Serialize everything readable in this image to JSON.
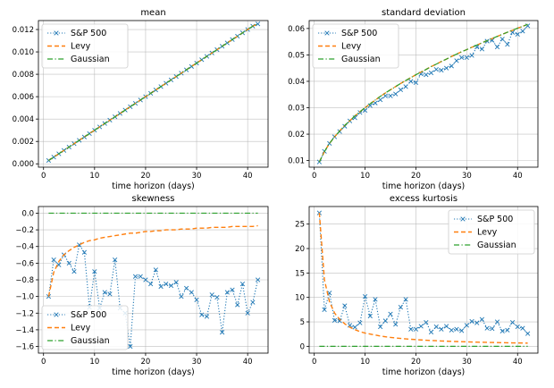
{
  "colors": {
    "sp500": "#1f77b4",
    "levy": "#ff7f0e",
    "gaussian": "#2ca02c"
  },
  "chart_data": [
    {
      "type": "line",
      "title": "mean",
      "xlabel": "time horizon (days)",
      "ylabel": "",
      "xlim": [
        -1,
        44
      ],
      "ylim": [
        -0.0003,
        0.0128
      ],
      "xticks": [
        0,
        10,
        20,
        30,
        40
      ],
      "yticks": [
        0.0,
        0.002,
        0.004,
        0.006,
        0.008,
        0.01,
        0.012
      ],
      "ytick_labels": [
        "0.000",
        "0.002",
        "0.004",
        "0.006",
        "0.008",
        "0.010",
        "0.012"
      ],
      "grid": true,
      "legend": "upper-left",
      "x": [
        1,
        2,
        3,
        4,
        5,
        6,
        7,
        8,
        9,
        10,
        11,
        12,
        13,
        14,
        15,
        16,
        17,
        18,
        19,
        20,
        21,
        22,
        23,
        24,
        25,
        26,
        27,
        28,
        29,
        30,
        31,
        32,
        33,
        34,
        35,
        36,
        37,
        38,
        39,
        40,
        41,
        42
      ],
      "series": [
        {
          "name": "S&P 500",
          "style": "dotted-x",
          "values": [
            0.0003,
            0.0006,
            0.0009,
            0.0012,
            0.0015,
            0.0018,
            0.0021,
            0.0024,
            0.0027,
            0.003,
            0.0033,
            0.0036,
            0.0039,
            0.0042,
            0.0045,
            0.0048,
            0.0051,
            0.0054,
            0.0057,
            0.006,
            0.0063,
            0.0066,
            0.0069,
            0.0072,
            0.0075,
            0.0078,
            0.0081,
            0.0084,
            0.0087,
            0.009,
            0.0093,
            0.0096,
            0.0099,
            0.0102,
            0.0105,
            0.0108,
            0.0111,
            0.0114,
            0.0117,
            0.012,
            0.0123,
            0.0125
          ]
        },
        {
          "name": "Levy",
          "style": "dashed",
          "values": [
            0.0003,
            0.0006,
            0.0009,
            0.0012,
            0.0015,
            0.0018,
            0.0021,
            0.0024,
            0.0027,
            0.003,
            0.0033,
            0.0036,
            0.0039,
            0.0042,
            0.0045,
            0.0048,
            0.0051,
            0.0054,
            0.0057,
            0.006,
            0.0063,
            0.0066,
            0.0069,
            0.0072,
            0.0075,
            0.0078,
            0.0081,
            0.0084,
            0.0087,
            0.009,
            0.0093,
            0.0096,
            0.0099,
            0.0102,
            0.0105,
            0.0108,
            0.0111,
            0.0114,
            0.0117,
            0.012,
            0.0123,
            0.0125
          ]
        },
        {
          "name": "Gaussian",
          "style": "dashdot",
          "values": [
            0.0003,
            0.0006,
            0.0009,
            0.0012,
            0.0015,
            0.0018,
            0.0021,
            0.0024,
            0.0027,
            0.003,
            0.0033,
            0.0036,
            0.0039,
            0.0042,
            0.0045,
            0.0048,
            0.0051,
            0.0054,
            0.0057,
            0.006,
            0.0063,
            0.0066,
            0.0069,
            0.0072,
            0.0075,
            0.0078,
            0.0081,
            0.0084,
            0.0087,
            0.009,
            0.0093,
            0.0096,
            0.0099,
            0.0102,
            0.0105,
            0.0108,
            0.0111,
            0.0114,
            0.0117,
            0.012,
            0.0123,
            0.0125
          ]
        }
      ]
    },
    {
      "type": "line",
      "title": "standard deviation",
      "xlabel": "time horizon (days)",
      "ylabel": "",
      "xlim": [
        -1,
        44
      ],
      "ylim": [
        0.0075,
        0.063
      ],
      "xticks": [
        0,
        10,
        20,
        30,
        40
      ],
      "yticks": [
        0.01,
        0.02,
        0.03,
        0.04,
        0.05,
        0.06
      ],
      "ytick_labels": [
        "0.01",
        "0.02",
        "0.03",
        "0.04",
        "0.05",
        "0.06"
      ],
      "grid": true,
      "legend": "upper-left",
      "x": [
        1,
        2,
        3,
        4,
        5,
        6,
        7,
        8,
        9,
        10,
        11,
        12,
        13,
        14,
        15,
        16,
        17,
        18,
        19,
        20,
        21,
        22,
        23,
        24,
        25,
        26,
        27,
        28,
        29,
        30,
        31,
        32,
        33,
        34,
        35,
        36,
        37,
        38,
        39,
        40,
        41,
        42
      ],
      "series": [
        {
          "name": "S&P 500",
          "style": "dotted-x",
          "values": [
            0.0095,
            0.0135,
            0.0165,
            0.019,
            0.021,
            0.023,
            0.025,
            0.0262,
            0.0282,
            0.029,
            0.0308,
            0.0318,
            0.033,
            0.0345,
            0.0345,
            0.0352,
            0.0368,
            0.038,
            0.04,
            0.0395,
            0.0428,
            0.0425,
            0.0432,
            0.0445,
            0.0442,
            0.045,
            0.0458,
            0.0478,
            0.049,
            0.049,
            0.0498,
            0.053,
            0.0522,
            0.0552,
            0.0555,
            0.053,
            0.056,
            0.054,
            0.0585,
            0.0578,
            0.059,
            0.061
          ]
        },
        {
          "name": "Levy",
          "style": "dashed",
          "values": [
            0.0095,
            0.0134,
            0.0165,
            0.019,
            0.0212,
            0.0233,
            0.0251,
            0.0269,
            0.0285,
            0.03,
            0.0315,
            0.0329,
            0.0343,
            0.0356,
            0.0368,
            0.038,
            0.0392,
            0.0403,
            0.0414,
            0.0425,
            0.0435,
            0.0445,
            0.0456,
            0.0465,
            0.0475,
            0.0484,
            0.0494,
            0.0503,
            0.0512,
            0.052,
            0.0529,
            0.0537,
            0.0546,
            0.0554,
            0.0562,
            0.057,
            0.0578,
            0.0586,
            0.0593,
            0.0601,
            0.0608,
            0.0616
          ]
        },
        {
          "name": "Gaussian",
          "style": "dashdot",
          "values": [
            0.0095,
            0.0134,
            0.0165,
            0.019,
            0.0212,
            0.0233,
            0.0251,
            0.0269,
            0.0285,
            0.03,
            0.0315,
            0.0329,
            0.0343,
            0.0356,
            0.0368,
            0.038,
            0.0392,
            0.0403,
            0.0414,
            0.0425,
            0.0435,
            0.0445,
            0.0456,
            0.0465,
            0.0475,
            0.0484,
            0.0494,
            0.0503,
            0.0512,
            0.052,
            0.0529,
            0.0537,
            0.0546,
            0.0554,
            0.0562,
            0.057,
            0.0578,
            0.0586,
            0.0593,
            0.0601,
            0.0608,
            0.0616
          ]
        }
      ]
    },
    {
      "type": "line",
      "title": "skewness",
      "xlabel": "time horizon (days)",
      "ylabel": "",
      "xlim": [
        -1,
        44
      ],
      "ylim": [
        -1.68,
        0.08
      ],
      "xticks": [
        0,
        10,
        20,
        30,
        40
      ],
      "yticks": [
        0.0,
        -0.2,
        -0.4,
        -0.6,
        -0.8,
        -1.0,
        -1.2,
        -1.4,
        -1.6
      ],
      "ytick_labels": [
        "0.0",
        "−0.2",
        "−0.4",
        "−0.6",
        "−0.8",
        "−1.0",
        "−1.2",
        "−1.4",
        "−1.6"
      ],
      "grid": true,
      "legend": "lower-left",
      "x": [
        1,
        2,
        3,
        4,
        5,
        6,
        7,
        8,
        9,
        10,
        11,
        12,
        13,
        14,
        15,
        16,
        17,
        18,
        19,
        20,
        21,
        22,
        23,
        24,
        25,
        26,
        27,
        28,
        29,
        30,
        31,
        32,
        33,
        34,
        35,
        36,
        37,
        38,
        39,
        40,
        41,
        42
      ],
      "series": [
        {
          "name": "S&P 500",
          "style": "dotted-x",
          "values": [
            -1.0,
            -0.56,
            -0.62,
            -0.5,
            -0.6,
            -0.7,
            -0.38,
            -0.47,
            -1.13,
            -0.7,
            -1.14,
            -0.95,
            -0.97,
            -0.56,
            -1.14,
            -1.2,
            -1.6,
            -0.76,
            -0.76,
            -0.8,
            -0.85,
            -0.68,
            -0.88,
            -0.85,
            -0.87,
            -0.83,
            -1.0,
            -0.9,
            -0.95,
            -1.04,
            -1.22,
            -1.24,
            -0.98,
            -1.01,
            -1.43,
            -0.95,
            -0.92,
            -1.1,
            -0.85,
            -1.2,
            -1.07,
            -0.8
          ]
        },
        {
          "name": "Levy",
          "style": "dashed",
          "values": [
            -1.0,
            -0.71,
            -0.58,
            -0.5,
            -0.45,
            -0.41,
            -0.38,
            -0.35,
            -0.33,
            -0.32,
            -0.3,
            -0.29,
            -0.28,
            -0.27,
            -0.26,
            -0.25,
            -0.24,
            -0.24,
            -0.23,
            -0.22,
            -0.22,
            -0.21,
            -0.21,
            -0.2,
            -0.2,
            -0.2,
            -0.19,
            -0.19,
            -0.19,
            -0.18,
            -0.18,
            -0.18,
            -0.17,
            -0.17,
            -0.17,
            -0.17,
            -0.16,
            -0.16,
            -0.16,
            -0.16,
            -0.16,
            -0.15
          ]
        },
        {
          "name": "Gaussian",
          "style": "dashdot",
          "values": [
            0,
            0,
            0,
            0,
            0,
            0,
            0,
            0,
            0,
            0,
            0,
            0,
            0,
            0,
            0,
            0,
            0,
            0,
            0,
            0,
            0,
            0,
            0,
            0,
            0,
            0,
            0,
            0,
            0,
            0,
            0,
            0,
            0,
            0,
            0,
            0,
            0,
            0,
            0,
            0,
            0,
            0
          ]
        }
      ]
    },
    {
      "type": "line",
      "title": "excess kurtosis",
      "xlabel": "time horizon (days)",
      "ylabel": "",
      "xlim": [
        -1,
        44
      ],
      "ylim": [
        -1.4,
        28.6
      ],
      "xticks": [
        0,
        10,
        20,
        30,
        40
      ],
      "yticks": [
        0,
        5,
        10,
        15,
        20,
        25
      ],
      "ytick_labels": [
        "0",
        "5",
        "10",
        "15",
        "20",
        "25"
      ],
      "grid": true,
      "legend": "upper-right",
      "x": [
        1,
        2,
        3,
        4,
        5,
        6,
        7,
        8,
        9,
        10,
        11,
        12,
        13,
        14,
        15,
        16,
        17,
        18,
        19,
        20,
        21,
        22,
        23,
        24,
        25,
        26,
        27,
        28,
        29,
        30,
        31,
        32,
        33,
        34,
        35,
        36,
        37,
        38,
        39,
        40,
        41,
        42
      ],
      "series": [
        {
          "name": "S&P 500",
          "style": "dotted-x",
          "values": [
            27.3,
            7.5,
            10.9,
            5.3,
            5.2,
            8.3,
            4.3,
            3.9,
            4.8,
            10.2,
            6.2,
            9.6,
            4.0,
            5.2,
            6.6,
            4.5,
            8.0,
            9.6,
            3.5,
            3.5,
            4.1,
            4.9,
            2.9,
            4.0,
            3.5,
            4.1,
            3.3,
            3.5,
            3.2,
            4.3,
            5.1,
            4.8,
            5.5,
            3.7,
            3.6,
            5.0,
            3.1,
            3.3,
            4.9,
            4.0,
            3.7,
            2.6
          ]
        },
        {
          "name": "Levy",
          "style": "dashed",
          "values": [
            27.3,
            13.6,
            9.1,
            6.8,
            5.5,
            4.6,
            3.9,
            3.4,
            3.0,
            2.7,
            2.5,
            2.3,
            2.1,
            1.95,
            1.82,
            1.71,
            1.61,
            1.52,
            1.44,
            1.37,
            1.3,
            1.24,
            1.19,
            1.14,
            1.09,
            1.05,
            1.01,
            0.98,
            0.94,
            0.91,
            0.88,
            0.85,
            0.83,
            0.8,
            0.78,
            0.76,
            0.74,
            0.72,
            0.7,
            0.68,
            0.67,
            0.65
          ]
        },
        {
          "name": "Gaussian",
          "style": "dashdot",
          "values": [
            0,
            0,
            0,
            0,
            0,
            0,
            0,
            0,
            0,
            0,
            0,
            0,
            0,
            0,
            0,
            0,
            0,
            0,
            0,
            0,
            0,
            0,
            0,
            0,
            0,
            0,
            0,
            0,
            0,
            0,
            0,
            0,
            0,
            0,
            0,
            0,
            0,
            0,
            0,
            0,
            0,
            0
          ]
        }
      ]
    }
  ]
}
